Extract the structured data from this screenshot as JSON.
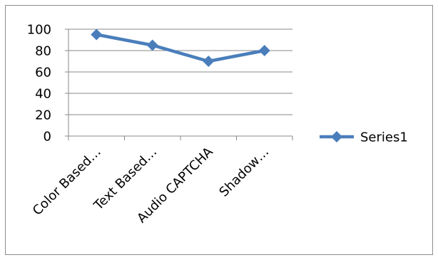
{
  "chart_data": {
    "type": "line",
    "categories": [
      "Color Based…",
      "Text Based…",
      "Audio CAPTCHA",
      "Shadow…"
    ],
    "series": [
      {
        "name": "Series1",
        "values": [
          95,
          85,
          70,
          80
        ],
        "color": "#4a7ebb",
        "marker": "diamond"
      }
    ],
    "title": "",
    "xlabel": "",
    "ylabel": "",
    "ylim": [
      0,
      100
    ],
    "yticks": [
      0,
      20,
      40,
      60,
      80,
      100
    ],
    "grid": true,
    "legend_position": "right"
  }
}
